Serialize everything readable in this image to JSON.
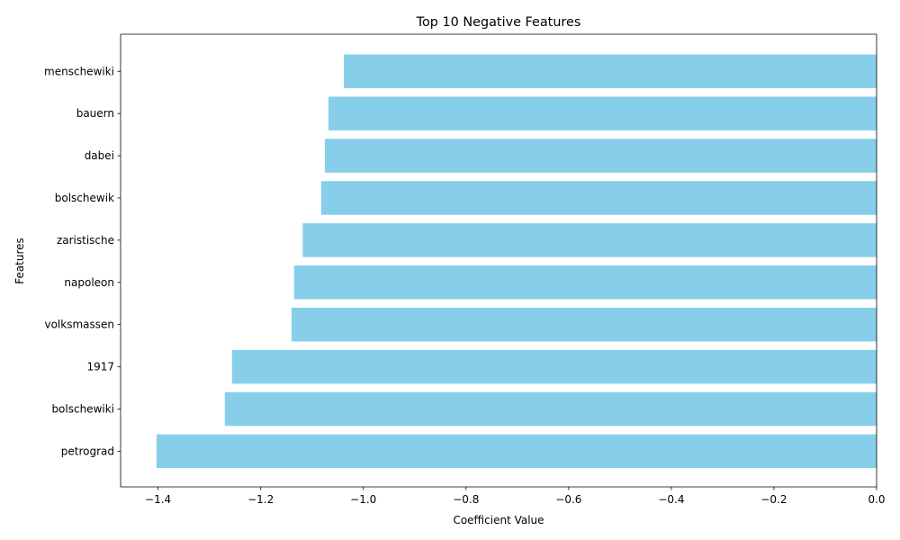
{
  "chart_data": {
    "type": "bar",
    "orientation": "horizontal",
    "title": "Top 10 Negative Features",
    "xlabel": "Coefficient Value",
    "ylabel": "Features",
    "categories": [
      "menschewiki",
      "bauern",
      "dabei",
      "bolschewik",
      "zaristische",
      "napoleon",
      "volksmassen",
      "1917",
      "bolschewiki",
      "petrograd"
    ],
    "values": [
      -1.038,
      -1.068,
      -1.075,
      -1.082,
      -1.118,
      -1.135,
      -1.14,
      -1.256,
      -1.27,
      -1.403
    ],
    "xlim": [
      -1.473,
      0.0
    ],
    "xticks": [
      -1.4,
      -1.2,
      -1.0,
      -0.8,
      -0.6,
      -0.4,
      -0.2,
      0.0
    ],
    "xtick_labels": [
      "−1.4",
      "−1.2",
      "−1.0",
      "−0.8",
      "−0.6",
      "−0.4",
      "−0.2",
      "0.0"
    ],
    "bar_color": "#87ceeb",
    "grid": false,
    "legend": "none"
  }
}
